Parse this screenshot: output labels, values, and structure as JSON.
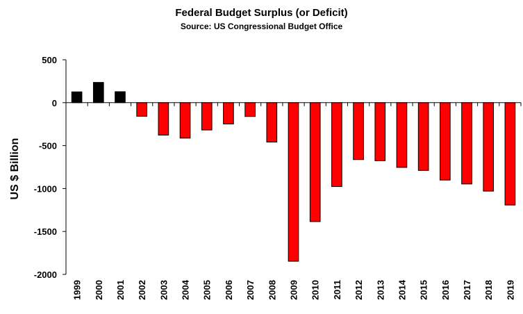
{
  "chart_data": {
    "type": "bar",
    "title": "Federal Budget Surplus (or Deficit)",
    "subtitle": "Source: US Congressional Budget Office",
    "ylabel": "US $ Billion",
    "xlabel": "",
    "ylim": [
      -2000,
      500
    ],
    "yticks": [
      500,
      0,
      -500,
      -1000,
      -1500,
      -2000
    ],
    "categories": [
      "1999",
      "2000",
      "2001",
      "2002",
      "2003",
      "2004",
      "2005",
      "2006",
      "2007",
      "2008",
      "2009",
      "2010",
      "2011",
      "2012",
      "2013",
      "2014",
      "2015",
      "2016",
      "2017",
      "2018",
      "2019"
    ],
    "values": [
      126,
      236,
      128,
      -158,
      -378,
      -413,
      -318,
      -248,
      -161,
      -459,
      -1847,
      -1385,
      -977,
      -663,
      -676,
      -754,
      -789,
      -901,
      -947,
      -1030,
      -1192
    ],
    "grid": false,
    "legend": "none",
    "colors": {
      "positive": "#000000",
      "negative": "#ff0000",
      "stroke": "#000000"
    }
  }
}
